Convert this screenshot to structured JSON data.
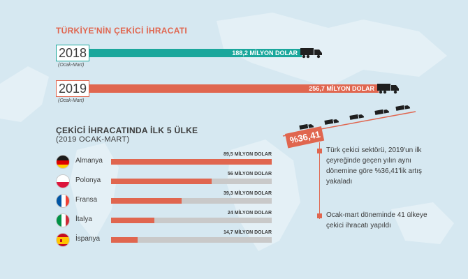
{
  "title": "TÜRKİYE'NİN ÇEKİCİ İHRACATI",
  "colors": {
    "teal": "#1aa79c",
    "orange": "#e0664f",
    "gray_track": "#c9c9c9"
  },
  "years": [
    {
      "year": "2018",
      "period": "(Ocak-Mart)",
      "value_label": "188,2 MİLYON DOLAR",
      "value": 188.2,
      "color": "#1aa79c"
    },
    {
      "year": "2019",
      "period": "(Ocak-Mart)",
      "value_label": "256,7 MİLYON DOLAR",
      "value": 256.7,
      "color": "#e0664f"
    }
  ],
  "top5": {
    "title": "ÇEKİCİ İHRACATINDA İLK 5 ÜLKE",
    "subtitle": "(2019 OCAK-MART)",
    "countries": [
      {
        "name": "Almanya",
        "value_label": "89,5 MİLYON DOLAR",
        "value": 89.5,
        "flag": "germany-flag"
      },
      {
        "name": "Polonya",
        "value_label": "56 MİLYON DOLAR",
        "value": 56,
        "flag": "poland-flag"
      },
      {
        "name": "Fransa",
        "value_label": "39,3 MİLYON DOLAR",
        "value": 39.3,
        "flag": "france-flag"
      },
      {
        "name": "İtalya",
        "value_label": "24 MİLYON DOLAR",
        "value": 24,
        "flag": "italy-flag"
      },
      {
        "name": "İspanya",
        "value_label": "14,7 MİLYON DOLAR",
        "value": 14.7,
        "flag": "spain-flag"
      }
    ]
  },
  "growth_badge": "%36,41",
  "notes": [
    "Türk çekici sektörü, 2019'un ilk çeyreğinde geçen yılın aynı dönemine göre %36,41'lik artış yakaladı",
    "Ocak-mart döneminde 41 ülkeye çekici ihracatı yapıldı"
  ],
  "chart_data": [
    {
      "type": "bar",
      "title": "TÜRKİYE'NİN ÇEKİCİ İHRACATI",
      "categories": [
        "2018",
        "2019"
      ],
      "values": [
        188.2,
        256.7
      ]
    },
    {
      "type": "bar",
      "title": "ÇEKİCİ İHRACATINDA İLK 5 ÜLKE",
      "subtitle": "(2019 OCAK-MART)",
      "categories": [
        "Almanya",
        "Polonya",
        "Fransa",
        "İtalya",
        "İspanya"
      ],
      "values": [
        89.5,
        56,
        39.3,
        24,
        14.7
      ]
    }
  ]
}
